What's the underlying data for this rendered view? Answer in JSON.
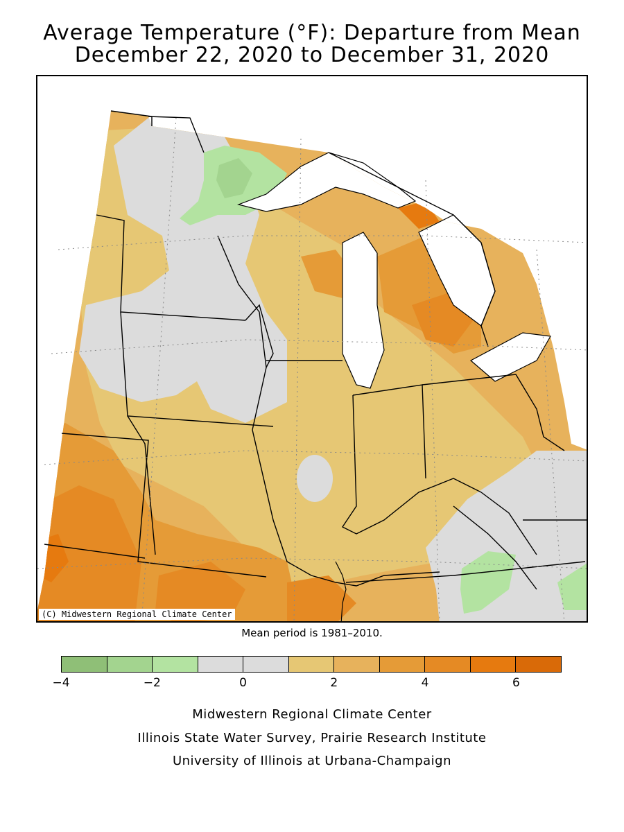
{
  "title": {
    "line1": "Average Temperature (°F): Departure from Mean",
    "line2": "December 22, 2020 to December 31, 2020"
  },
  "map": {
    "copyright": "(C) Midwestern Regional Climate Center",
    "colors": {
      "water": "#ffffff",
      "gray": "#dcdcdc",
      "light_green": "#b3e3a1",
      "green": "#99cc88",
      "tan": "#e6c774",
      "light_orange": "#e7b25c",
      "orange": "#e59b37",
      "dark_orange": "#e58a24",
      "deep_orange": "#e67a0f"
    }
  },
  "mean_note": "Mean period is 1981–2010.",
  "legend": {
    "bins": [
      {
        "from": -4,
        "to": -3,
        "color": "#8fbf77"
      },
      {
        "from": -3,
        "to": -2,
        "color": "#a3d48f"
      },
      {
        "from": -2,
        "to": -1,
        "color": "#b3e3a1"
      },
      {
        "from": -1,
        "to": 0,
        "color": "#dcdcdc"
      },
      {
        "from": 0,
        "to": 1,
        "color": "#dcdcdc"
      },
      {
        "from": 1,
        "to": 2,
        "color": "#e6c774"
      },
      {
        "from": 2,
        "to": 3,
        "color": "#e7b25c"
      },
      {
        "from": 3,
        "to": 4,
        "color": "#e59b37"
      },
      {
        "from": 4,
        "to": 5,
        "color": "#e58a24"
      },
      {
        "from": 5,
        "to": 6,
        "color": "#e67a0f"
      },
      {
        "from": 6,
        "to": 7,
        "color": "#d96a08"
      }
    ],
    "tick_labels": [
      "−4",
      "−2",
      "0",
      "2",
      "4",
      "6"
    ]
  },
  "credits": {
    "line1": "Midwestern Regional Climate Center",
    "line2": "Illinois State Water Survey, Prairie Research Institute",
    "line3": "University of Illinois at Urbana-Champaign"
  }
}
